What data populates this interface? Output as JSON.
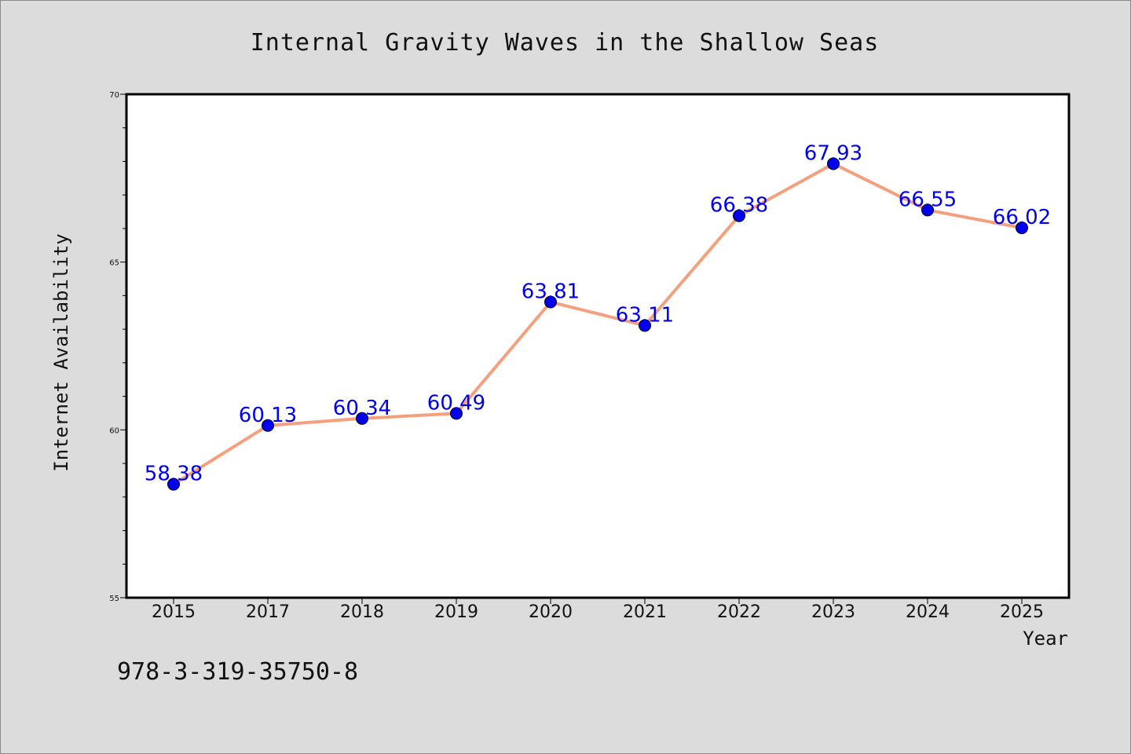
{
  "isbn_text": "978-3-319-35750-8",
  "colors": {
    "background": "#dcdcdc",
    "plot_area": "#ffffff",
    "line": "#f4a07e",
    "marker": "#0000ee",
    "data_label": "#0000ee"
  },
  "chart_data": {
    "type": "line",
    "title": "Internal Gravity Waves in the Shallow Seas",
    "xlabel": "Year",
    "ylabel": "Internet Availability",
    "categories": [
      "2015",
      "2017",
      "2018",
      "2019",
      "2020",
      "2021",
      "2022",
      "2023",
      "2024",
      "2025"
    ],
    "series": [
      {
        "values": [
          58.38,
          60.13,
          60.34,
          60.49,
          63.81,
          63.11,
          66.38,
          67.93,
          66.55,
          66.02
        ]
      }
    ],
    "data_labels": [
      "58.38",
      "60.13",
      "60.34",
      "60.49",
      "63.81",
      "63.11",
      "66.38",
      "67.93",
      "66.55",
      "66.02"
    ],
    "ylim": [
      55,
      70
    ],
    "yticks": [
      55,
      60,
      65,
      70
    ],
    "ytick_labels": [
      "55",
      "60",
      "65",
      "70"
    ],
    "y_minor_step": 1,
    "grid": false,
    "legend": "none"
  }
}
